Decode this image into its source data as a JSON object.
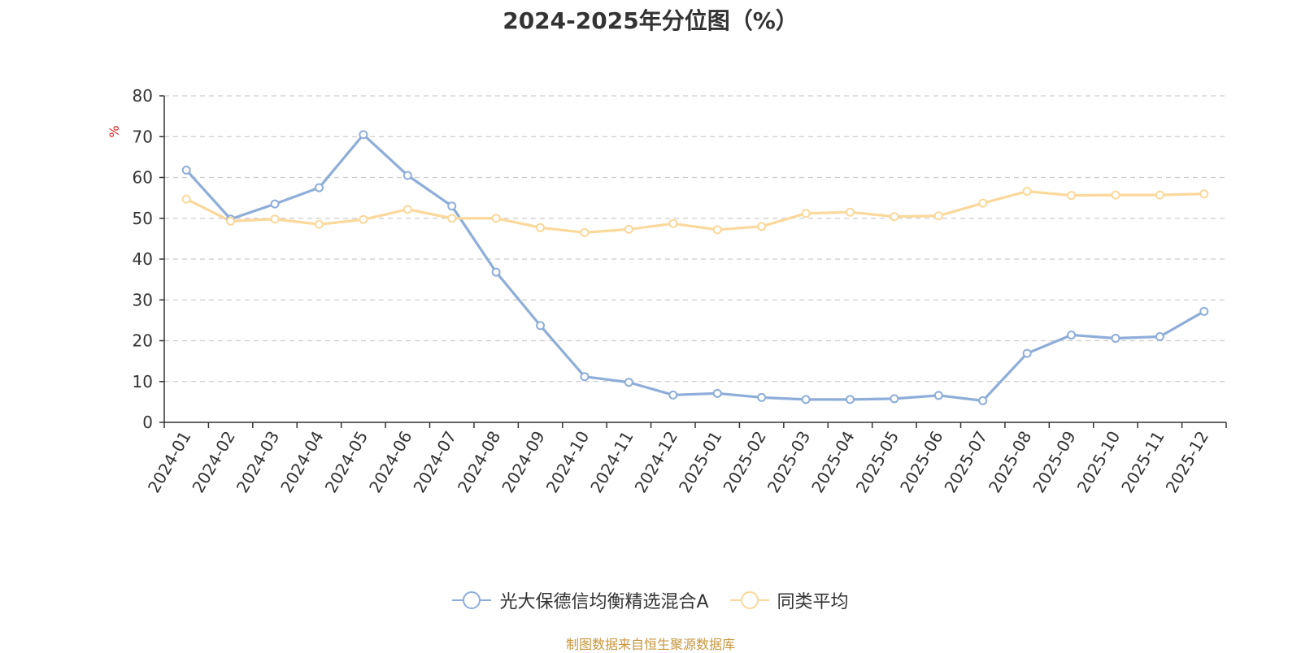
{
  "chart_data": {
    "type": "line",
    "title": "2024-2025年分位图（%）",
    "ylabel": "%",
    "xlabel": "",
    "ylim": [
      0,
      80
    ],
    "yticks": [
      0,
      10,
      20,
      30,
      40,
      50,
      60,
      70,
      80
    ],
    "grid": true,
    "legend_position": "bottom",
    "categories": [
      "2024-01",
      "2024-02",
      "2024-03",
      "2024-04",
      "2024-05",
      "2024-06",
      "2024-07",
      "2024-08",
      "2024-09",
      "2024-10",
      "2024-11",
      "2024-12",
      "2025-01",
      "2025-02",
      "2025-03",
      "2025-04",
      "2025-05",
      "2025-06",
      "2025-07",
      "2025-08",
      "2025-09",
      "2025-10",
      "2025-11",
      "2025-12"
    ],
    "series": [
      {
        "name": "光大保德信均衡精选混合A",
        "color": "#8eadd9",
        "values": [
          61.8,
          49.8,
          53.5,
          57.5,
          70.5,
          60.5,
          53.0,
          36.8,
          23.7,
          11.2,
          9.8,
          6.7,
          7.1,
          6.1,
          5.6,
          5.6,
          5.8,
          6.6,
          5.3,
          16.9,
          21.4,
          20.6,
          21.0,
          27.2
        ]
      },
      {
        "name": "同类平均",
        "color": "#fbd89b",
        "values": [
          54.7,
          49.3,
          49.8,
          48.5,
          49.7,
          52.2,
          50.0,
          50.0,
          47.7,
          46.5,
          47.3,
          48.7,
          47.2,
          48.0,
          51.2,
          51.5,
          50.4,
          50.6,
          53.7,
          56.6,
          55.6,
          55.7,
          55.7,
          56.0
        ]
      }
    ]
  },
  "footer": "制图数据来自恒生聚源数据库"
}
